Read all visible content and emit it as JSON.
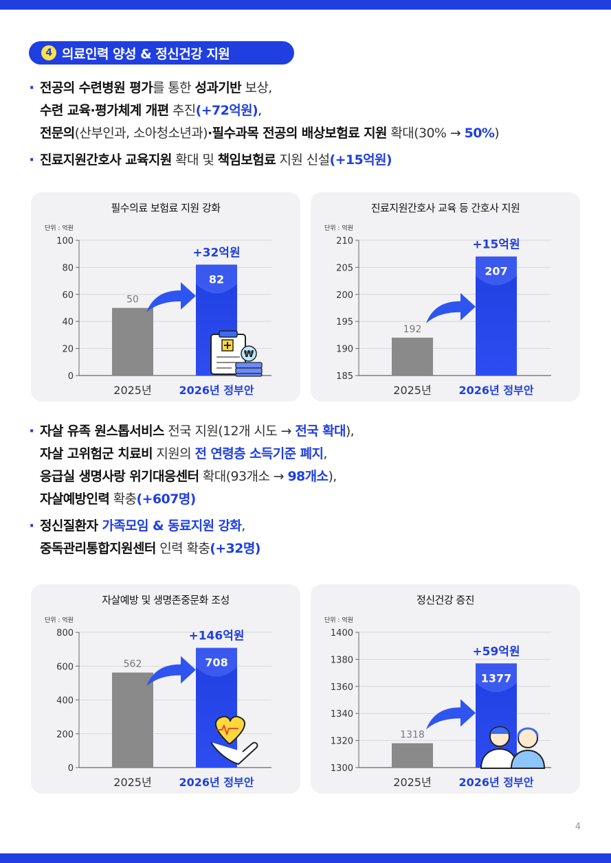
{
  "section": {
    "number": "4",
    "title": "의료인력 양성 & 정신건강 지원"
  },
  "bullets_top": [
    {
      "lines": [
        [
          {
            "t": "전공의 수련병원 평가",
            "s": "b"
          },
          {
            "t": "를 통한 ",
            "s": "n"
          },
          {
            "t": "성과기반",
            "s": "b"
          },
          {
            "t": " 보상,",
            "s": "n"
          }
        ],
        [
          {
            "t": "수련 교육·평가체계 개편",
            "s": "b"
          },
          {
            "t": " 추진",
            "s": "n"
          },
          {
            "t": "(+72억원)",
            "s": "blue"
          },
          {
            "t": ",",
            "s": "n"
          }
        ],
        [
          {
            "t": "전문의",
            "s": "b"
          },
          {
            "t": "(산부인과, 소아청소년과)",
            "s": "n"
          },
          {
            "t": "·필수과목 전공의 배상보험료 지원",
            "s": "b"
          },
          {
            "t": " 확대(30% → ",
            "s": "n"
          },
          {
            "t": "50%",
            "s": "blue"
          },
          {
            "t": ")",
            "s": "n"
          }
        ]
      ]
    },
    {
      "lines": [
        [
          {
            "t": "진료지원간호사 교육지원",
            "s": "b"
          },
          {
            "t": " 확대 및 ",
            "s": "n"
          },
          {
            "t": "책임보험료",
            "s": "b"
          },
          {
            "t": " 지원 신설",
            "s": "n"
          },
          {
            "t": "(+15억원)",
            "s": "blue"
          }
        ]
      ]
    }
  ],
  "bullets_mid": [
    {
      "lines": [
        [
          {
            "t": "자살 유족 원스톱서비스",
            "s": "b"
          },
          {
            "t": " 전국 지원(12개 시도 → ",
            "s": "n"
          },
          {
            "t": "전국 확대",
            "s": "blue"
          },
          {
            "t": "),",
            "s": "n"
          }
        ],
        [
          {
            "t": "자살 고위험군 치료비",
            "s": "b"
          },
          {
            "t": " 지원의 ",
            "s": "n"
          },
          {
            "t": "전 연령층 소득기준 폐지",
            "s": "blue"
          },
          {
            "t": ",",
            "s": "n"
          }
        ],
        [
          {
            "t": "응급실 생명사랑 위기대응센터",
            "s": "b"
          },
          {
            "t": " 확대(93개소 → ",
            "s": "n"
          },
          {
            "t": "98개소",
            "s": "blue"
          },
          {
            "t": "),",
            "s": "n"
          }
        ],
        [
          {
            "t": "자살예방인력",
            "s": "b"
          },
          {
            "t": " 확충",
            "s": "n"
          },
          {
            "t": "(+607명)",
            "s": "blue"
          }
        ]
      ]
    },
    {
      "lines": [
        [
          {
            "t": "정신질환자 ",
            "s": "b"
          },
          {
            "t": "가족모임 & 동료지원 강화",
            "s": "blue"
          },
          {
            "t": ",",
            "s": "n"
          }
        ],
        [
          {
            "t": "중독관리통합지원센터",
            "s": "b"
          },
          {
            "t": " 인력 확충",
            "s": "n"
          },
          {
            "t": "(+32명)",
            "s": "blue"
          }
        ]
      ]
    }
  ],
  "colors": {
    "accent": "#1f3fe0",
    "bar_2025": "#8a8a8a",
    "card_bg": "#f2f2f4"
  },
  "chart_data": [
    {
      "type": "bar",
      "title": "필수의료 보험료 지원 강화",
      "unit_label": "단위 : 억원",
      "categories": [
        "2025년",
        "2026년 정부안"
      ],
      "values": [
        50,
        82
      ],
      "value_labels": [
        "50",
        "82"
      ],
      "ylim": [
        0,
        100
      ],
      "yticks": [
        "0",
        "20",
        "40",
        "60",
        "80",
        "100"
      ],
      "increase_label": "+32억원",
      "icon": "clipboard-won-icon"
    },
    {
      "type": "bar",
      "title": "진료지원간호사 교육 등 간호사 지원",
      "unit_label": "단위 : 억원",
      "categories": [
        "2025년",
        "2026년 정부안"
      ],
      "values": [
        192,
        207
      ],
      "value_labels": [
        "192",
        "207"
      ],
      "ylim": [
        185,
        210
      ],
      "yticks": [
        "185",
        "190",
        "195",
        "200",
        "205",
        "210"
      ],
      "increase_label": "+15억원",
      "icon": ""
    },
    {
      "type": "bar",
      "title": "자살예방 및 생명존중문화 조성",
      "unit_label": "단위 : 억원",
      "categories": [
        "2025년",
        "2026년 정부안"
      ],
      "values": [
        562,
        708
      ],
      "value_labels": [
        "562",
        "708"
      ],
      "ylim": [
        0,
        800
      ],
      "yticks": [
        "0",
        "200",
        "400",
        "600",
        "800"
      ],
      "increase_label": "+146억원",
      "icon": "heart-hand-icon"
    },
    {
      "type": "bar",
      "title": "정신건강 증진",
      "unit_label": "단위 : 억원",
      "categories": [
        "2025년",
        "2026년 정부안"
      ],
      "values": [
        1318,
        1377
      ],
      "value_labels": [
        "1318",
        "1377"
      ],
      "ylim": [
        1300,
        1400
      ],
      "yticks": [
        "1300",
        "1320",
        "1340",
        "1360",
        "1380",
        "1400"
      ],
      "increase_label": "+59억원",
      "icon": "people-icon"
    }
  ],
  "page_number": "4"
}
